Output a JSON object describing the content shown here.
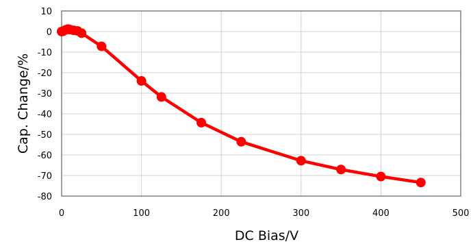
{
  "chart_data": {
    "type": "line",
    "title": "",
    "xlabel": "DC Bias/V",
    "ylabel": "Cap. Change/%",
    "xlim": [
      0,
      500
    ],
    "ylim": [
      -80,
      10
    ],
    "xticks": [
      0,
      100,
      200,
      300,
      400,
      500
    ],
    "yticks": [
      10,
      0,
      -10,
      -20,
      -30,
      -40,
      -50,
      -60,
      -70,
      -80
    ],
    "grid": true,
    "legend": "none",
    "series": [
      {
        "color": "#ff0000",
        "marker": "circle",
        "x": [
          0,
          2,
          5,
          8,
          10,
          15,
          20,
          25,
          50,
          100,
          125,
          175,
          225,
          300,
          350,
          400,
          450
        ],
        "y": [
          0,
          0.2,
          0.8,
          1.2,
          1.0,
          0.6,
          0.3,
          -0.8,
          -7.2,
          -24.0,
          -31.8,
          -44.3,
          -53.6,
          -62.8,
          -67.1,
          -70.5,
          -73.4
        ]
      }
    ]
  }
}
